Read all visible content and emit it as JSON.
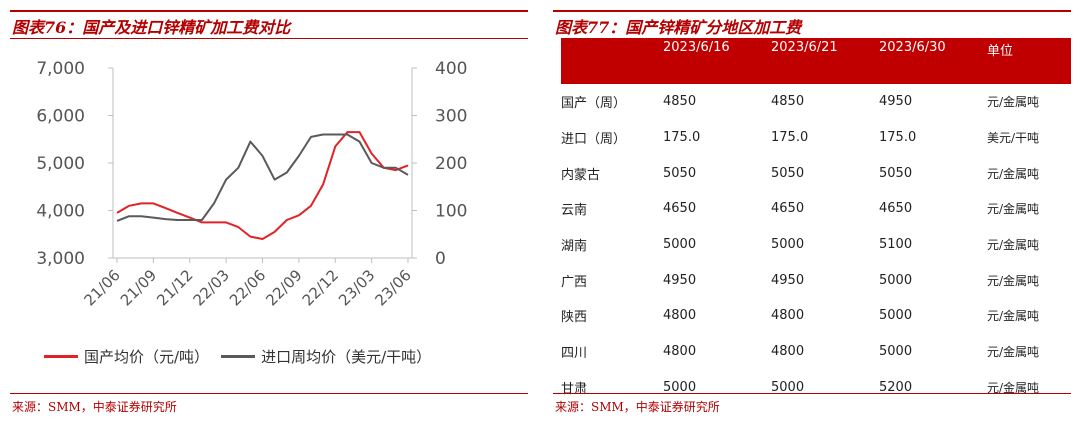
{
  "left": {
    "title": "图表76：国产及进口锌精矿加工费对比",
    "source": "来源：SMM，中泰证券研究所"
  },
  "right": {
    "title": "图表77：国产锌精矿分地区加工费",
    "source": "来源：SMM，中泰证券研究所"
  },
  "chart_data": {
    "type": "line",
    "title": "",
    "xlabel": "",
    "ylabel": "",
    "x_ticks": [
      "21/06",
      "21/09",
      "21/12",
      "22/03",
      "22/06",
      "22/09",
      "22/12",
      "23/03",
      "23/06"
    ],
    "y_left": {
      "ticks": [
        "7,000",
        "6,000",
        "5,000",
        "4,000",
        "3,000"
      ],
      "lim": [
        3000,
        7000
      ]
    },
    "y_right": {
      "ticks": [
        "400",
        "300",
        "200",
        "100",
        "0"
      ],
      "lim": [
        0,
        400
      ]
    },
    "legend_placement": "bottom",
    "grid": false,
    "series": [
      {
        "name": "国产均价（元/吨）",
        "axis": "left",
        "color": "#e32227",
        "x": [
          "21/06",
          "21/07",
          "21/08",
          "21/09",
          "21/10",
          "21/11",
          "21/12",
          "22/01",
          "22/02",
          "22/03",
          "22/04",
          "22/05",
          "22/06",
          "22/07",
          "22/08",
          "22/09",
          "22/10",
          "22/11",
          "22/12",
          "23/01",
          "23/02",
          "23/03",
          "23/04",
          "23/05",
          "23/06"
        ],
        "values": [
          3950,
          4100,
          4150,
          4150,
          4050,
          3950,
          3850,
          3750,
          3750,
          3750,
          3650,
          3450,
          3400,
          3550,
          3800,
          3900,
          4100,
          4550,
          5350,
          5650,
          5650,
          5200,
          4900,
          4850,
          4950
        ]
      },
      {
        "name": "进口周均价（美元/干吨）",
        "axis": "right",
        "color": "#5a5a5a",
        "x": [
          "21/06",
          "21/07",
          "21/08",
          "21/09",
          "21/10",
          "21/11",
          "21/12",
          "22/01",
          "22/02",
          "22/03",
          "22/04",
          "22/05",
          "22/06",
          "22/07",
          "22/08",
          "22/09",
          "22/10",
          "22/11",
          "22/12",
          "23/01",
          "23/02",
          "23/03",
          "23/04",
          "23/05",
          "23/06"
        ],
        "values": [
          78,
          88,
          88,
          85,
          82,
          80,
          80,
          80,
          115,
          165,
          190,
          245,
          215,
          165,
          180,
          215,
          255,
          260,
          260,
          260,
          245,
          200,
          190,
          190,
          175
        ]
      }
    ]
  },
  "table": {
    "headers": [
      "",
      "2023/6/16",
      "2023/6/21",
      "2023/6/30",
      "单位"
    ],
    "rows": [
      [
        "国产（周）",
        "4850",
        "4850",
        "4950",
        "元/金属吨"
      ],
      [
        "进口（周）",
        "175.0",
        "175.0",
        "175.0",
        "美元/干吨"
      ],
      [
        "内蒙古",
        "5050",
        "5050",
        "5050",
        "元/金属吨"
      ],
      [
        "云南",
        "4650",
        "4650",
        "4650",
        "元/金属吨"
      ],
      [
        "湖南",
        "5000",
        "5000",
        "5100",
        "元/金属吨"
      ],
      [
        "广西",
        "4950",
        "4950",
        "5000",
        "元/金属吨"
      ],
      [
        "陕西",
        "4800",
        "4800",
        "5000",
        "元/金属吨"
      ],
      [
        "四川",
        "4800",
        "4800",
        "5000",
        "元/金属吨"
      ],
      [
        "甘肃",
        "5000",
        "5000",
        "5200",
        "元/金属吨"
      ]
    ]
  }
}
